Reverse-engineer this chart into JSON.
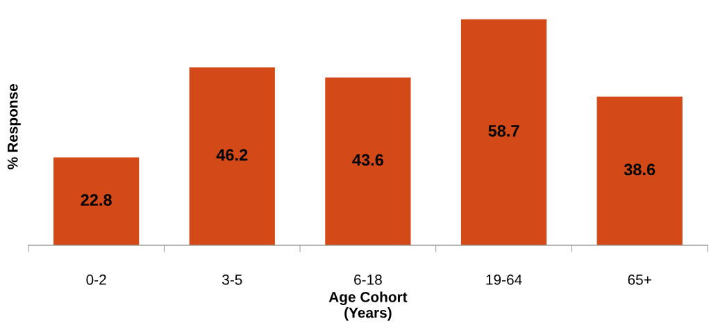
{
  "chart_data": {
    "type": "bar",
    "xlabel": "Age Cohort\n(Years)",
    "ylabel": "% Response",
    "categories": [
      "0-2",
      "3-5",
      "6-18",
      "19-64",
      "65+"
    ],
    "values": [
      22.8,
      46.2,
      43.6,
      58.7,
      38.6
    ],
    "color": "#d34a18",
    "data_labels": true,
    "grid": false,
    "legend": false
  }
}
